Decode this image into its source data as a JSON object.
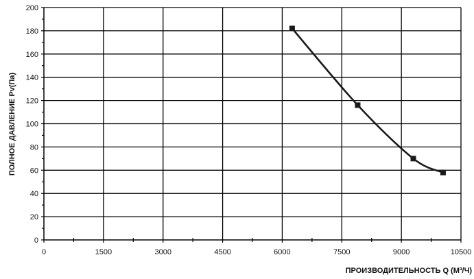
{
  "chart_data": {
    "type": "line",
    "title": "",
    "xlabel": "ПРОИЗВОДИТЕЛЬНОСТЬ   Q  (М³/Ч)",
    "ylabel": "ПОЛНОЕ ДАВЛЕНИЕ   Pv(Па)",
    "xlim": [
      0,
      10500
    ],
    "ylim": [
      0,
      200
    ],
    "x_ticks": [
      0,
      1500,
      3000,
      4500,
      6000,
      7500,
      9000,
      10500
    ],
    "y_ticks": [
      0,
      20,
      40,
      60,
      80,
      100,
      120,
      140,
      160,
      180,
      200
    ],
    "x_tick_labels": [
      "0",
      "1500",
      "3000",
      "4500",
      "6000",
      "7500",
      "9000",
      "10500"
    ],
    "y_tick_labels": [
      "0",
      "20",
      "40",
      "60",
      "80",
      "100",
      "120",
      "140",
      "160",
      "180",
      "200"
    ],
    "grid": true,
    "series": [
      {
        "x": [
          6250,
          7900,
          9300,
          10050
        ],
        "y": [
          182,
          116,
          70,
          58
        ]
      }
    ],
    "colors": {
      "line": "#1a1a1a",
      "grid": "#000000",
      "marker": "#1a1a1a"
    }
  }
}
